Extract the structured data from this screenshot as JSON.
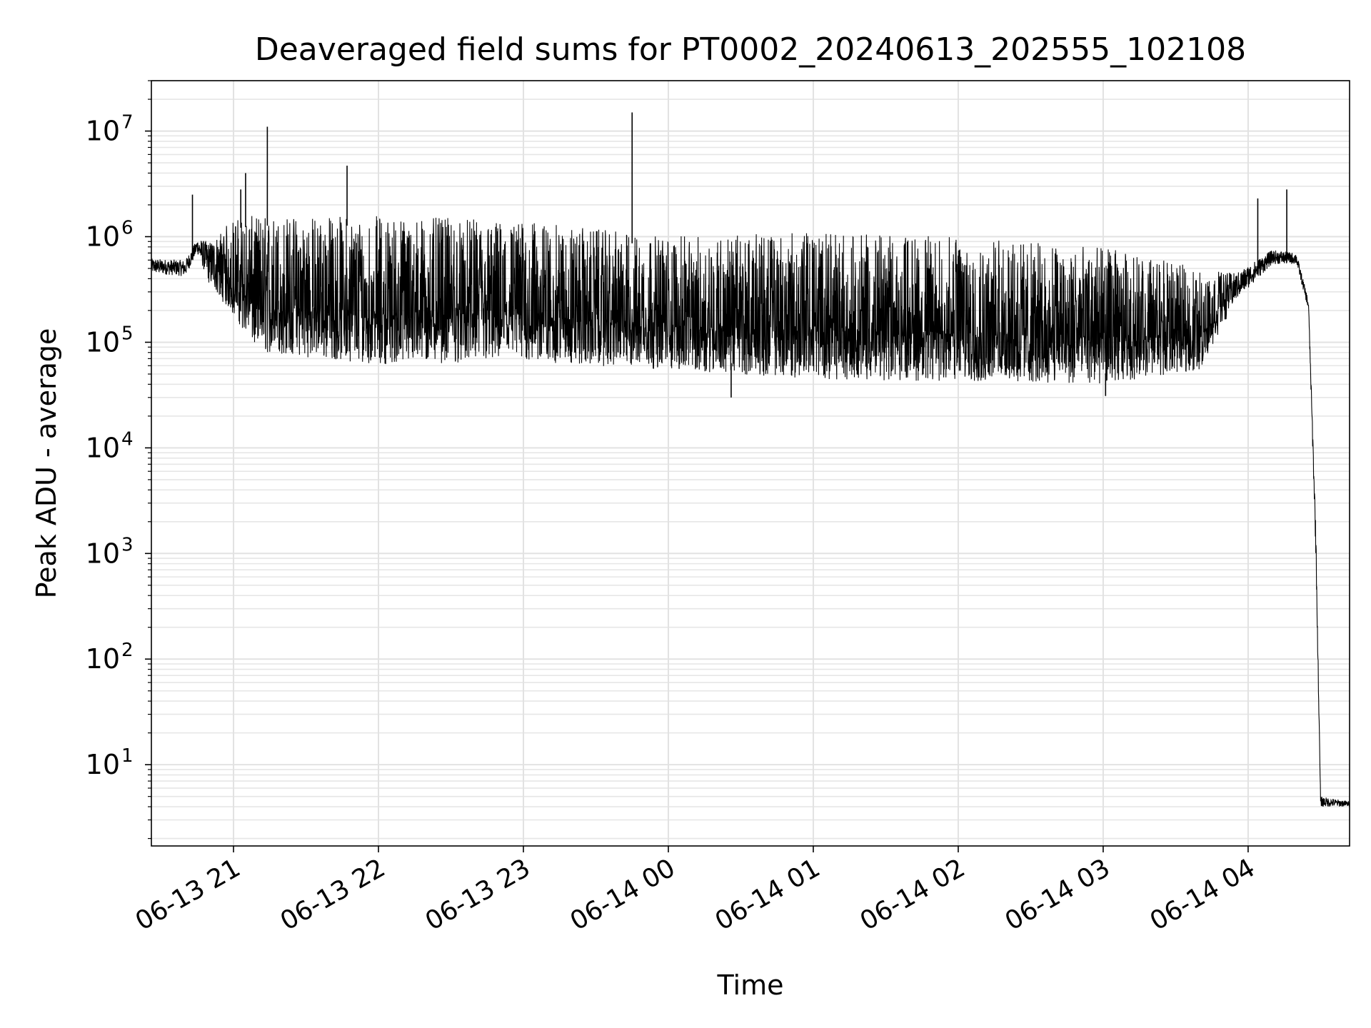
{
  "chart_data": {
    "type": "line",
    "title": "Deaveraged field sums for PT0002_20240613_202555_102108",
    "xlabel": "Time",
    "ylabel": "Peak ADU - average",
    "yscale": "log",
    "ylim": [
      1.7,
      30000000
    ],
    "xlim": [
      "2024-06-13 20:26",
      "2024-06-14 04:42"
    ],
    "grid": {
      "major": true,
      "minor_y": true
    },
    "line_color": "#000000",
    "x_ticks": [
      {
        "value": "2024-06-13 21:00",
        "label": "06-13 21"
      },
      {
        "value": "2024-06-13 22:00",
        "label": "06-13 22"
      },
      {
        "value": "2024-06-13 23:00",
        "label": "06-13 23"
      },
      {
        "value": "2024-06-14 00:00",
        "label": "06-14 00"
      },
      {
        "value": "2024-06-14 01:00",
        "label": "06-14 01"
      },
      {
        "value": "2024-06-14 02:00",
        "label": "06-14 02"
      },
      {
        "value": "2024-06-14 03:00",
        "label": "06-14 03"
      },
      {
        "value": "2024-06-14 04:00",
        "label": "06-14 04"
      }
    ],
    "y_ticks": [
      {
        "value": 10,
        "base": "10",
        "exp": "1"
      },
      {
        "value": 100,
        "base": "10",
        "exp": "2"
      },
      {
        "value": 1000,
        "base": "10",
        "exp": "3"
      },
      {
        "value": 10000,
        "base": "10",
        "exp": "4"
      },
      {
        "value": 100000,
        "base": "10",
        "exp": "5"
      },
      {
        "value": 1000000,
        "base": "10",
        "exp": "6"
      },
      {
        "value": 10000000,
        "base": "10",
        "exp": "7"
      }
    ],
    "series": [
      {
        "name": "",
        "envelope": [
          {
            "x": "2024-06-13 20:26",
            "low": 450000,
            "high": 620000
          },
          {
            "x": "2024-06-13 20:40",
            "low": 420000,
            "high": 600000
          },
          {
            "x": "2024-06-13 20:45",
            "low": 700000,
            "high": 950000
          },
          {
            "x": "2024-06-13 20:50",
            "low": 350000,
            "high": 900000
          },
          {
            "x": "2024-06-13 21:00",
            "low": 180000,
            "high": 1500000
          },
          {
            "x": "2024-06-13 21:10",
            "low": 80000,
            "high": 1600000
          },
          {
            "x": "2024-06-13 22:00",
            "low": 62000,
            "high": 1600000
          },
          {
            "x": "2024-06-13 23:00",
            "low": 65000,
            "high": 1400000
          },
          {
            "x": "2024-06-14 00:00",
            "low": 55000,
            "high": 1000000
          },
          {
            "x": "2024-06-14 01:00",
            "low": 45000,
            "high": 1100000
          },
          {
            "x": "2024-06-14 02:00",
            "low": 42000,
            "high": 1000000
          },
          {
            "x": "2024-06-14 03:00",
            "low": 40000,
            "high": 800000
          },
          {
            "x": "2024-06-14 03:40",
            "low": 55000,
            "high": 500000
          },
          {
            "x": "2024-06-14 03:55",
            "low": 250000,
            "high": 450000
          },
          {
            "x": "2024-06-14 04:10",
            "low": 550000,
            "high": 750000
          },
          {
            "x": "2024-06-14 04:20",
            "low": 550000,
            "high": 700000
          },
          {
            "x": "2024-06-14 04:25",
            "low": 200000,
            "high": 250000
          },
          {
            "x": "2024-06-14 04:28",
            "low": 1000,
            "high": 2000
          },
          {
            "x": "2024-06-14 04:30",
            "low": 4,
            "high": 5
          },
          {
            "x": "2024-06-14 04:42",
            "low": 4,
            "high": 4.5
          }
        ],
        "spikes": [
          {
            "x": "2024-06-13 20:43",
            "y": 2500000
          },
          {
            "x": "2024-06-13 21:03",
            "y": 2800000
          },
          {
            "x": "2024-06-13 21:05",
            "y": 4000000
          },
          {
            "x": "2024-06-13 21:14",
            "y": 11000000
          },
          {
            "x": "2024-06-13 21:47",
            "y": 4700000
          },
          {
            "x": "2024-06-13 23:45",
            "y": 15000000
          },
          {
            "x": "2024-06-14 04:04",
            "y": 2300000
          },
          {
            "x": "2024-06-14 04:16",
            "y": 2800000
          }
        ],
        "dips": [
          {
            "x": "2024-06-14 00:26",
            "y": 30000
          },
          {
            "x": "2024-06-14 03:01",
            "y": 31000
          }
        ]
      }
    ]
  }
}
